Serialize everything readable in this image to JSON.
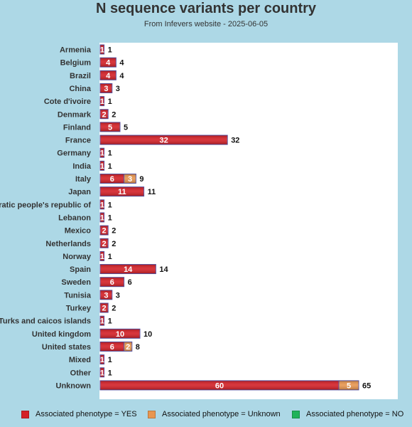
{
  "title": "N sequence variants per country",
  "subtitle": "From Infevers website - 2025-06-05",
  "chart_data": {
    "type": "bar",
    "orientation": "horizontal",
    "stacked": true,
    "categories": [
      "Armenia",
      "Belgium",
      "Brazil",
      "China",
      "Cote d'ivoire",
      "Denmark",
      "Finland",
      "France",
      "Germany",
      "India",
      "Italy",
      "Japan",
      "Lao, democratic people's republic of",
      "Lebanon",
      "Mexico",
      "Netherlands",
      "Norway",
      "Spain",
      "Sweden",
      "Tunisia",
      "Turkey",
      "Turks and caicos islands",
      "United kingdom",
      "United states",
      "Mixed",
      "Other",
      "Unknown"
    ],
    "series": [
      {
        "name": "Associated phenotype = YES",
        "color": "#d42027",
        "values": [
          1,
          4,
          4,
          3,
          1,
          2,
          5,
          32,
          1,
          1,
          6,
          11,
          1,
          1,
          2,
          2,
          1,
          14,
          6,
          3,
          2,
          1,
          10,
          6,
          1,
          1,
          60
        ]
      },
      {
        "name": "Associated phenotype = Unknown",
        "color": "#e8964f",
        "values": [
          0,
          0,
          0,
          0,
          0,
          0,
          0,
          0,
          0,
          0,
          3,
          0,
          0,
          0,
          0,
          0,
          0,
          0,
          0,
          0,
          0,
          0,
          0,
          2,
          0,
          0,
          5
        ]
      },
      {
        "name": "Associated phenotype = NO",
        "color": "#1fb35a",
        "values": [
          0,
          0,
          0,
          0,
          0,
          0,
          0,
          0,
          0,
          0,
          0,
          0,
          0,
          0,
          0,
          0,
          0,
          0,
          0,
          0,
          0,
          0,
          0,
          0,
          0,
          0,
          0
        ]
      }
    ],
    "totals": [
      1,
      4,
      4,
      3,
      1,
      2,
      5,
      32,
      1,
      1,
      9,
      11,
      1,
      1,
      2,
      2,
      1,
      14,
      6,
      3,
      2,
      1,
      10,
      8,
      1,
      1,
      65
    ],
    "xlim": [
      0,
      70
    ],
    "grid": false,
    "legend_position": "bottom",
    "xlabel": "",
    "ylabel": ""
  }
}
